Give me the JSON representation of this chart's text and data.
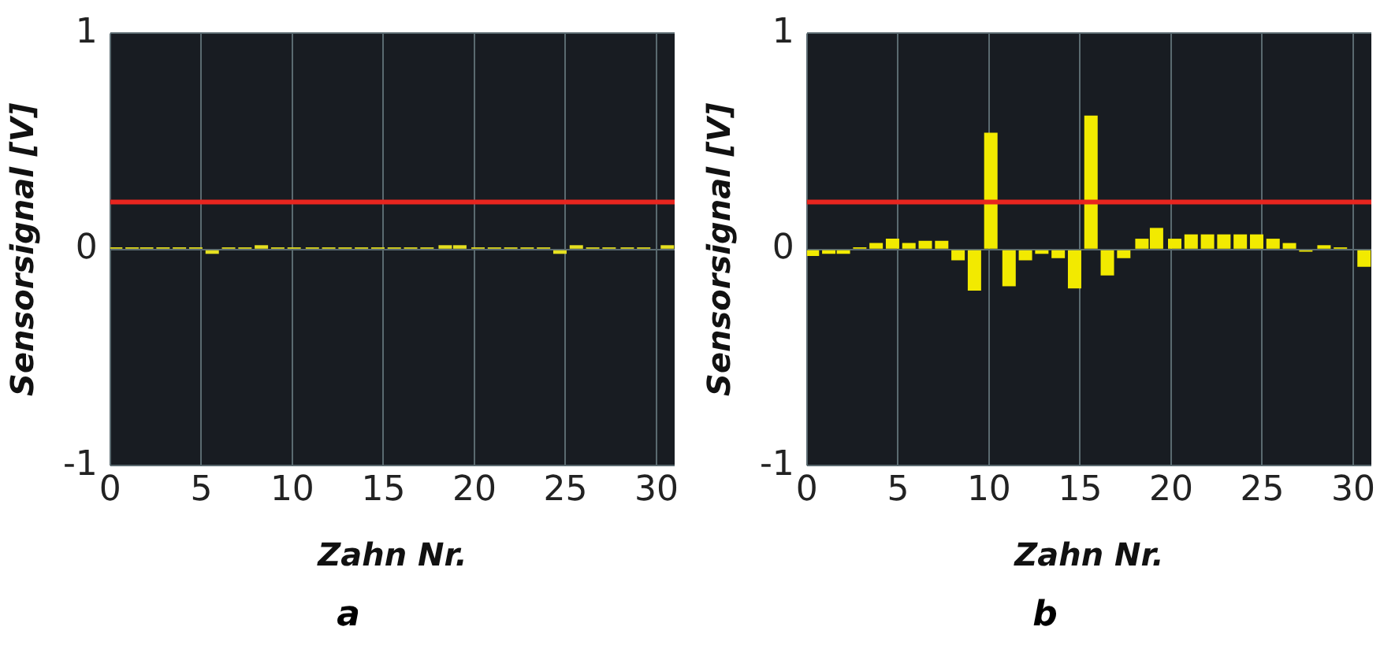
{
  "chart_data": [
    {
      "type": "bar",
      "title": "a",
      "xlabel": "Zahn Nr.",
      "ylabel": "Sensorsignal [V]",
      "x": [
        0.3,
        1.2,
        2.0,
        2.9,
        3.8,
        4.7,
        5.6,
        6.5,
        7.4,
        8.3,
        9.2,
        10.1,
        11.1,
        12.0,
        12.9,
        13.8,
        14.7,
        15.6,
        16.5,
        17.4,
        18.4,
        19.2,
        20.2,
        21.1,
        22.0,
        22.9,
        23.8,
        24.7,
        25.6,
        26.5,
        27.4,
        28.4,
        29.3,
        30.6
      ],
      "series": [
        {
          "color": "#e6e020",
          "values": [
            0.01,
            0.01,
            0.01,
            0.01,
            0.01,
            0.01,
            -0.02,
            0.01,
            0.01,
            0.02,
            0.01,
            0.01,
            0.01,
            0.01,
            0.01,
            0.01,
            0.01,
            0.01,
            0.01,
            0.01,
            0.02,
            0.02,
            0.01,
            0.01,
            0.01,
            0.01,
            0.01,
            -0.02,
            0.02,
            0.01,
            0.01,
            0.01,
            0.01,
            0.02
          ]
        }
      ],
      "xlim": [
        0,
        31
      ],
      "xticks": [
        0,
        5,
        10,
        15,
        20,
        25,
        30
      ],
      "ylim": [
        -1,
        1
      ],
      "yticks": [
        -1,
        0,
        1
      ],
      "grid": true,
      "ref_lines": [
        {
          "axis": "y",
          "value": 0.22,
          "color": "#e8251f"
        }
      ]
    },
    {
      "type": "bar",
      "title": "b",
      "xlabel": "Zahn Nr.",
      "ylabel": "Sensorsignal [V]",
      "x": [
        0.3,
        1.2,
        2.0,
        2.9,
        3.8,
        4.7,
        5.6,
        6.5,
        7.4,
        8.3,
        9.2,
        10.1,
        11.1,
        12.0,
        12.9,
        13.8,
        14.7,
        15.6,
        16.5,
        17.4,
        18.4,
        19.2,
        20.2,
        21.1,
        22.0,
        22.9,
        23.8,
        24.7,
        25.6,
        26.5,
        27.4,
        28.4,
        29.3,
        30.6
      ],
      "series": [
        {
          "color": "#f2ea00",
          "values": [
            -0.03,
            -0.02,
            -0.02,
            0.01,
            0.03,
            0.05,
            0.03,
            0.04,
            0.04,
            -0.05,
            -0.19,
            0.54,
            -0.17,
            -0.05,
            -0.02,
            -0.04,
            -0.18,
            0.62,
            -0.12,
            -0.04,
            0.05,
            0.1,
            0.05,
            0.07,
            0.07,
            0.07,
            0.07,
            0.07,
            0.05,
            0.03,
            -0.01,
            0.02,
            0.01,
            -0.08
          ]
        }
      ],
      "xlim": [
        0,
        31
      ],
      "xticks": [
        0,
        5,
        10,
        15,
        20,
        25,
        30
      ],
      "ylim": [
        -1,
        1
      ],
      "yticks": [
        -1,
        0,
        1
      ],
      "grid": true,
      "ref_lines": [
        {
          "axis": "y",
          "value": 0.22,
          "color": "#e8251f"
        }
      ]
    }
  ]
}
